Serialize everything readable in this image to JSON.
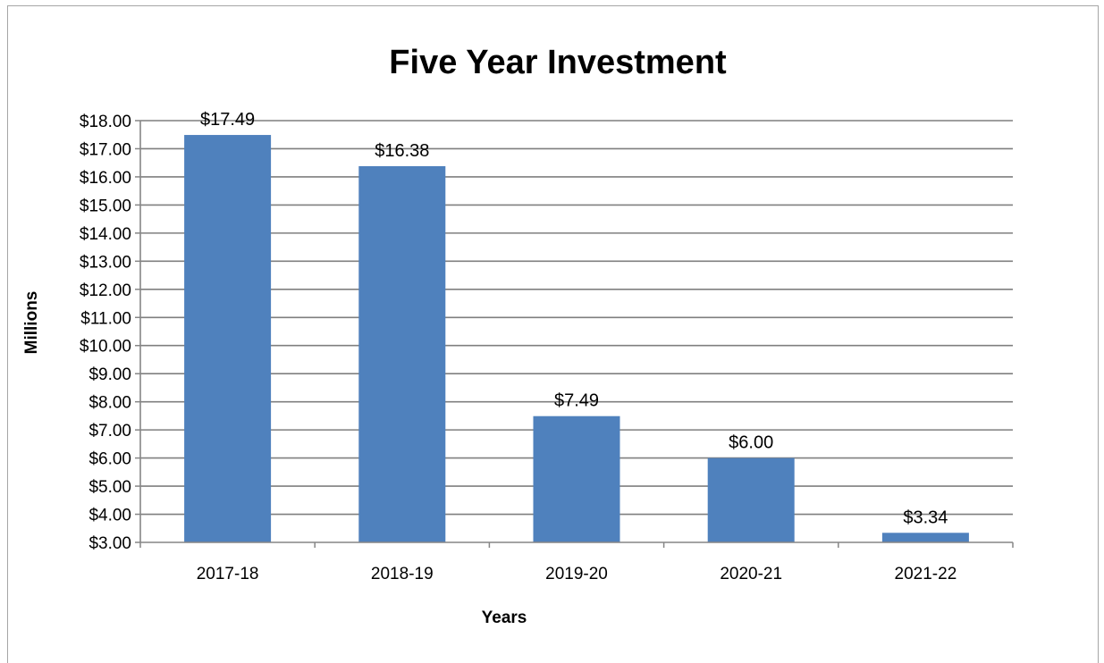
{
  "chart_data": {
    "type": "bar",
    "title": "Five Year Investment",
    "xlabel": "Years",
    "ylabel": "Millions",
    "categories": [
      "2017-18",
      "2018-19",
      "2019-20",
      "2020-21",
      "2021-22"
    ],
    "values": [
      17.49,
      16.38,
      7.49,
      6.0,
      3.34
    ],
    "data_labels": [
      "$17.49",
      "$16.38",
      "$7.49",
      "$6.00",
      "$3.34"
    ],
    "ylim": [
      3,
      18
    ],
    "y_ticks": [
      3,
      4,
      5,
      6,
      7,
      8,
      9,
      10,
      11,
      12,
      13,
      14,
      15,
      16,
      17,
      18
    ],
    "y_tick_labels": [
      "$3.00",
      "$4.00",
      "$5.00",
      "$6.00",
      "$7.00",
      "$8.00",
      "$9.00",
      "$10.00",
      "$11.00",
      "$12.00",
      "$13.00",
      "$14.00",
      "$15.00",
      "$16.00",
      "$17.00",
      "$18.00"
    ],
    "grid": true,
    "legend": "none",
    "colors": {
      "bar": "#4f81bd",
      "grid": "#7f7f7f",
      "axis": "#868686"
    }
  }
}
